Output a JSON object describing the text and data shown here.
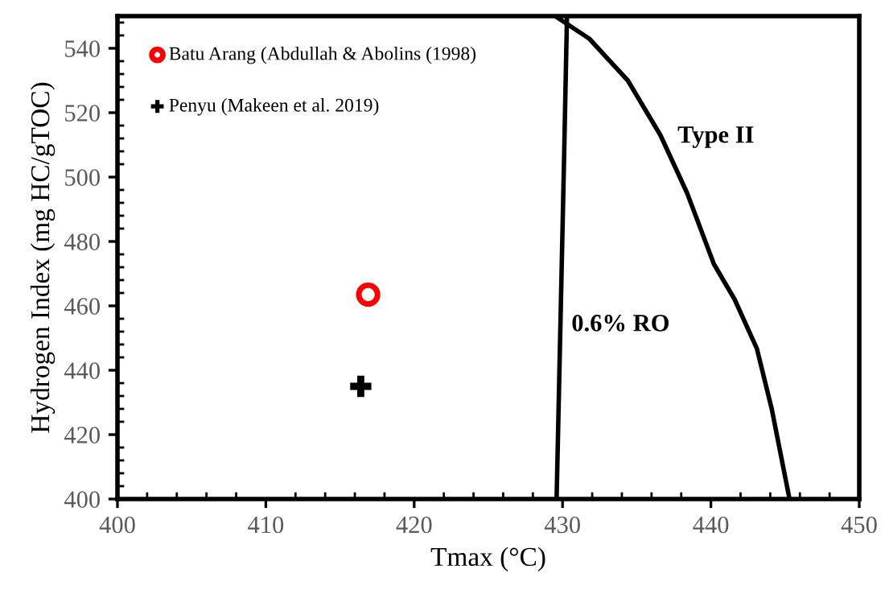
{
  "chart_data": {
    "type": "scatter",
    "xlabel": "Tmax (°C)",
    "ylabel": "Hydrogen Index (mg HC/gTOC)",
    "xlim": [
      400,
      450
    ],
    "xticks": [
      400,
      410,
      420,
      430,
      440,
      450
    ],
    "ylim": [
      400,
      550
    ],
    "yticks": [
      400,
      420,
      440,
      460,
      480,
      500,
      520,
      540
    ],
    "grid": false,
    "legend": "top left",
    "series": [
      {
        "name": "Batu Arang (Abdullah & Abolins (1998)",
        "color": "#ff0000",
        "marker": "circle",
        "x": [
          416.9
        ],
        "values": [
          463.5
        ]
      },
      {
        "name": "Penyu (Makeen et al. 2019)",
        "color": "#000000",
        "marker": "cross",
        "x": [
          416.4
        ],
        "values": [
          435
        ]
      },
      {
        "type": "line",
        "name": "0.6% RO",
        "color": "#000000",
        "marker": "none",
        "x": [
          429.6,
          430.1,
          430.3
        ],
        "values": [
          400,
          505,
          550
        ]
      },
      {
        "type": "line",
        "name": "Type II",
        "color": "#000000",
        "marker": "none",
        "x": [
          429.5,
          431.8,
          434.4,
          436.6,
          438.4,
          440.2,
          441.6,
          443.1,
          444.1,
          445.3
        ],
        "values": [
          550,
          543,
          530,
          513,
          495,
          473,
          462,
          446.7,
          428,
          400
        ]
      }
    ]
  }
}
